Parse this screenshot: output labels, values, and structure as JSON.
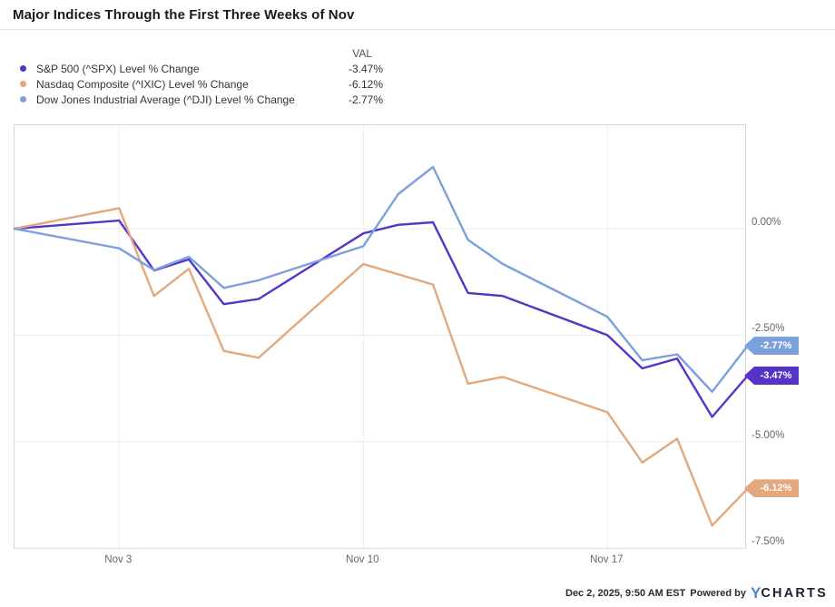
{
  "title": "Major Indices Through the First Three Weeks of Nov",
  "legend": {
    "val_header": "VAL",
    "items": [
      {
        "label": "S&P 500 (^SPX) Level % Change",
        "value": "-3.47%",
        "color": "#5634c8"
      },
      {
        "label": "Nasdaq Composite (^IXIC) Level % Change",
        "value": "-6.12%",
        "color": "#e3a87c"
      },
      {
        "label": "Dow Jones Industrial Average (^DJI) Level % Change",
        "value": "-2.77%",
        "color": "#7aa0dd"
      }
    ]
  },
  "chart_data": {
    "type": "line",
    "title": "Major Indices Through the First Three Weeks of Nov",
    "xlabel": "",
    "ylabel": "Level % Change",
    "grid": true,
    "legend_position": "top-left",
    "x_unit": "calendar-day offset from Oct 31 baseline (weekends omitted)",
    "x_range_days": [
      0,
      21
    ],
    "x_tick_days": [
      3,
      10,
      17
    ],
    "x_tick_labels": [
      "Nov 3",
      "Nov 10",
      "Nov 17"
    ],
    "ylim": [
      -7.54,
      2.43
    ],
    "y_tick_values": [
      0,
      -2.5,
      -5,
      -7.5
    ],
    "y_tick_labels": [
      "0.00%",
      "-2.50%",
      "-5.00%",
      "-7.50%"
    ],
    "dates": [
      "Oct 31",
      "Nov 3",
      "Nov 4",
      "Nov 5",
      "Nov 6",
      "Nov 7",
      "Nov 10",
      "Nov 11",
      "Nov 12",
      "Nov 13",
      "Nov 14",
      "Nov 17",
      "Nov 18",
      "Nov 19",
      "Nov 20",
      "Nov 21"
    ],
    "days": [
      0,
      3,
      4,
      5,
      6,
      7,
      10,
      11,
      12,
      13,
      14,
      17,
      18,
      19,
      20,
      21
    ],
    "series": [
      {
        "id": "spx",
        "name": "S&P 500 (^SPX)",
        "color": "#5634c8",
        "end_label": "-3.47%",
        "values": [
          0,
          0.19,
          -0.98,
          -0.72,
          -1.77,
          -1.65,
          -0.11,
          0.09,
          0.15,
          -1.51,
          -1.58,
          -2.5,
          -3.28,
          -3.05,
          -4.42,
          -3.47
        ]
      },
      {
        "id": "ixic",
        "name": "Nasdaq Composite (^IXIC)",
        "color": "#e3a87c",
        "end_label": "-6.12%",
        "values": [
          0,
          0.48,
          -1.58,
          -0.94,
          -2.87,
          -3.03,
          -0.83,
          -1.07,
          -1.31,
          -3.64,
          -3.48,
          -4.31,
          -5.49,
          -4.93,
          -6.97,
          -6.12
        ]
      },
      {
        "id": "dji",
        "name": "Dow Jones Industrial Average (^DJI)",
        "color": "#7aa0dd",
        "end_label": "-2.77%",
        "values": [
          0,
          -0.46,
          -0.97,
          -0.66,
          -1.39,
          -1.21,
          -0.41,
          0.81,
          1.45,
          -0.26,
          -0.83,
          -2.07,
          -3.09,
          -2.95,
          -3.83,
          -2.77
        ]
      }
    ]
  },
  "footer": {
    "timestamp": "Dec 2, 2025, 9:50 AM EST",
    "powered_by": "Powered by",
    "brand_y": "Y",
    "brand_rest": "CHARTS"
  }
}
